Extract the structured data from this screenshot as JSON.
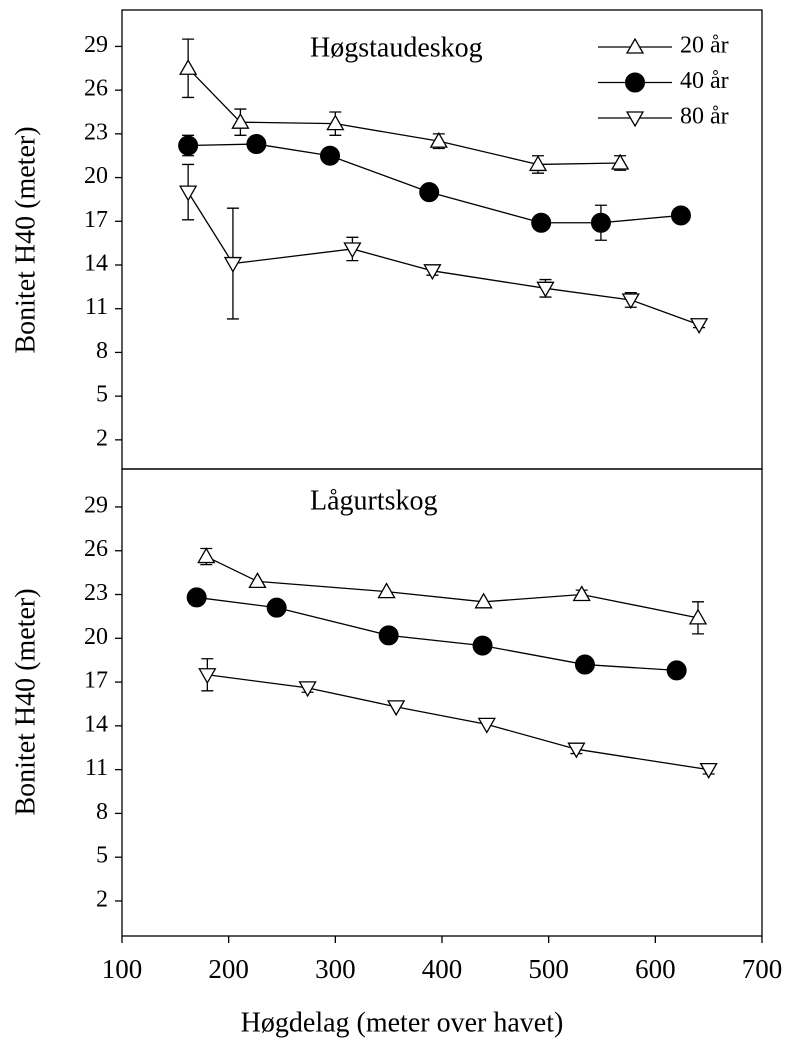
{
  "chart_data": [
    {
      "type": "line",
      "title": "Høgstaudeskog",
      "ylabel": "Bonitet H40 (meter)",
      "xlim": [
        100,
        700
      ],
      "ylim": [
        0,
        31.5
      ],
      "yticks": [
        2,
        5,
        8,
        11,
        14,
        17,
        20,
        23,
        26,
        29
      ],
      "legend": "upper right",
      "series": [
        {
          "name": "20 år",
          "color": "#000000",
          "marker": "triangle-up",
          "x": [
            162,
            211,
            300,
            397,
            490,
            567
          ],
          "values": [
            27.5,
            23.8,
            23.7,
            22.5,
            20.9,
            21.0
          ],
          "errors": [
            2.0,
            0.9,
            0.8,
            0.5,
            0.6,
            0.5
          ]
        },
        {
          "name": "40 år",
          "color": "#000000",
          "marker": "circle",
          "x": [
            162,
            226,
            295,
            388,
            493,
            549,
            624
          ],
          "values": [
            22.2,
            22.3,
            21.5,
            19.0,
            16.9,
            16.9,
            17.4
          ],
          "errors": [
            0.7,
            null,
            null,
            null,
            null,
            1.2,
            null
          ]
        },
        {
          "name": "80 år",
          "color": "#000000",
          "marker": "triangle-down",
          "x": [
            162,
            204,
            316,
            391,
            497,
            577,
            641
          ],
          "values": [
            19.0,
            14.1,
            15.1,
            13.6,
            12.4,
            11.6,
            9.9
          ],
          "errors": [
            1.9,
            3.8,
            0.8,
            0.3,
            0.6,
            0.5,
            0.2
          ]
        }
      ]
    },
    {
      "type": "line",
      "title": "Lågurtskog",
      "ylabel": "Bonitet H40 (meter)",
      "xlabel": "Høgdelag (meter over havet)",
      "xlim": [
        100,
        700
      ],
      "xticks": [
        100,
        200,
        300,
        400,
        500,
        600,
        700
      ],
      "ylim": [
        -0.4,
        31.6
      ],
      "yticks": [
        2,
        5,
        8,
        11,
        14,
        17,
        20,
        23,
        26,
        29
      ],
      "series": [
        {
          "color": "#000000",
          "marker": "triangle-up",
          "x": [
            179,
            227,
            348,
            439,
            531,
            640
          ],
          "values": [
            25.6,
            23.9,
            23.2,
            22.5,
            23.0,
            21.4
          ],
          "errors": [
            0.55,
            null,
            null,
            null,
            0.3,
            1.1
          ]
        },
        {
          "color": "#000000",
          "marker": "circle",
          "x": [
            170,
            245,
            350,
            438,
            534,
            620
          ],
          "values": [
            22.8,
            22.1,
            20.2,
            19.5,
            18.2,
            17.8
          ],
          "errors": [
            null,
            null,
            null,
            null,
            null,
            null
          ]
        },
        {
          "color": "#000000",
          "marker": "triangle-down",
          "x": [
            180,
            274,
            357,
            442,
            526,
            650
          ],
          "values": [
            17.5,
            16.6,
            15.3,
            14.1,
            12.4,
            11.0
          ],
          "errors": [
            1.1,
            0.3,
            null,
            null,
            0.3,
            0.3
          ]
        }
      ]
    }
  ]
}
